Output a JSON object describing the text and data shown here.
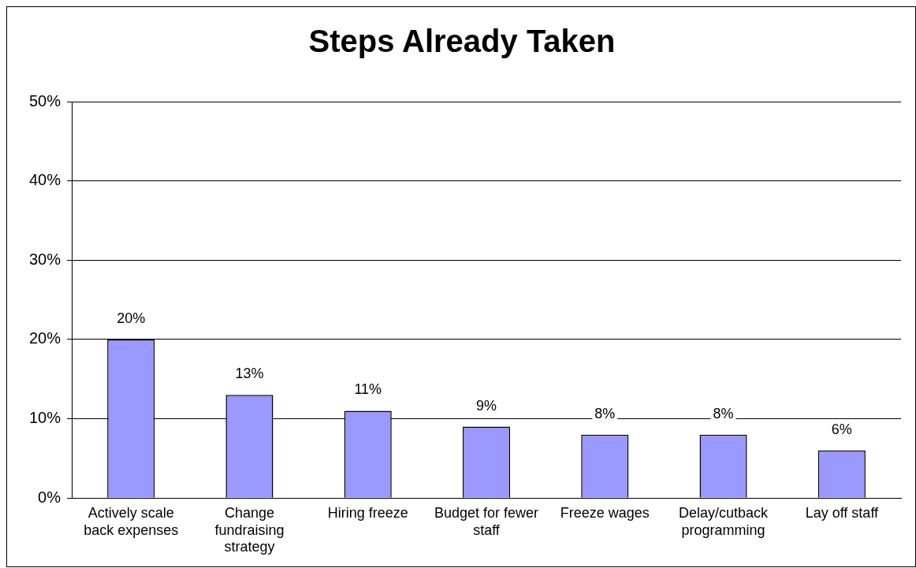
{
  "chart_data": {
    "type": "bar",
    "title": "Steps Already Taken",
    "categories": [
      "Actively scale back expenses",
      "Change fundraising strategy",
      "Hiring freeze",
      "Budget for fewer staff",
      "Freeze wages",
      "Delay/cutback programming",
      "Lay off staff"
    ],
    "values": [
      20,
      13,
      11,
      9,
      8,
      8,
      6
    ],
    "value_labels": [
      "20%",
      "13%",
      "11%",
      "9%",
      "8%",
      "8%",
      "6%"
    ],
    "color": "#9999ff",
    "ylim": [
      0,
      50
    ],
    "yticks": [
      {
        "value": 0,
        "label": "0%"
      },
      {
        "value": 10,
        "label": "10%"
      },
      {
        "value": 20,
        "label": "20%"
      },
      {
        "value": 30,
        "label": "30%"
      },
      {
        "value": 40,
        "label": "40%"
      },
      {
        "value": 50,
        "label": "50%"
      }
    ],
    "grid": "y"
  }
}
